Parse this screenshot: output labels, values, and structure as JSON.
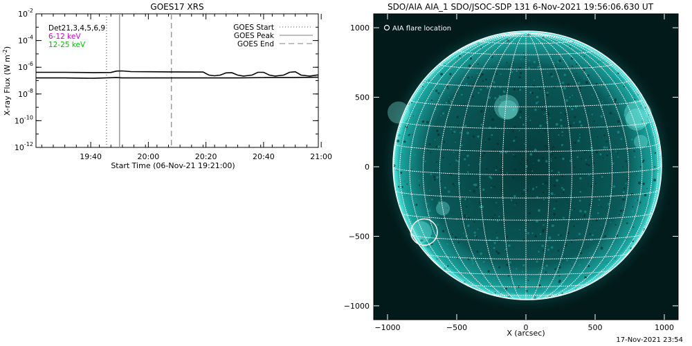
{
  "footer_timestamp": "17-Nov-2021 23:54",
  "chart_data": [
    {
      "type": "line",
      "title": "GOES17 XRS",
      "xlabel": "Start Time (06-Nov-21 19:21:00)",
      "ylabel": "X-ray Flux (W m^-2)",
      "y_scale": "log",
      "x_range_minutes_after_start": [
        0,
        98
      ],
      "ylim": [
        1e-12,
        0.01
      ],
      "x_ticks": [
        {
          "label": "19:40",
          "minute": 19
        },
        {
          "label": "20:00",
          "minute": 39
        },
        {
          "label": "20:20",
          "minute": 59
        },
        {
          "label": "20:40",
          "minute": 79
        },
        {
          "label": "21:00",
          "minute": 99
        }
      ],
      "y_ticks": [
        {
          "base": "10",
          "exp": "-2",
          "value": 0.01
        },
        {
          "base": "10",
          "exp": "-4",
          "value": 0.0001
        },
        {
          "base": "10",
          "exp": "-6",
          "value": 1e-06
        },
        {
          "base": "10",
          "exp": "-8",
          "value": 1e-08
        },
        {
          "base": "10",
          "exp": "-10",
          "value": 1e-10
        },
        {
          "base": "10",
          "exp": "-12",
          "value": 1e-12
        }
      ],
      "legend_left": [
        {
          "label": "Det21,3,4,5,6,9",
          "color": "#000000"
        },
        {
          "label": "6-12 keV",
          "color": "#d000d0"
        },
        {
          "label": "12-25 keV",
          "color": "#00c000"
        }
      ],
      "legend_right": [
        {
          "label": "GOES Start",
          "style": "dotted",
          "minute": 24.5
        },
        {
          "label": "GOES Peak",
          "style": "solid",
          "minute": 29
        },
        {
          "label": "GOES End",
          "style": "dashed",
          "minute": 47
        }
      ],
      "series": [
        {
          "color": "#000000",
          "points": [
            [
              0,
              4.2e-07
            ],
            [
              10,
              4.2e-07
            ],
            [
              20,
              4e-07
            ],
            [
              26,
              4.1e-07
            ],
            [
              28,
              5.2e-07
            ],
            [
              30,
              5.3e-07
            ],
            [
              33,
              4.7e-07
            ],
            [
              40,
              4.6e-07
            ],
            [
              47,
              4.5e-07
            ],
            [
              55,
              4.4e-07
            ],
            [
              58,
              4.4e-07
            ],
            [
              60,
              2.6e-07
            ],
            [
              62,
              2.3e-07
            ],
            [
              64,
              2.6e-07
            ],
            [
              66,
              3.8e-07
            ],
            [
              68,
              3.9e-07
            ],
            [
              70,
              2.6e-07
            ],
            [
              72,
              2.2e-07
            ],
            [
              75,
              2.6e-07
            ],
            [
              77,
              4.2e-07
            ],
            [
              79,
              4.2e-07
            ],
            [
              81,
              2.6e-07
            ],
            [
              83,
              2.2e-07
            ],
            [
              86,
              2.6e-07
            ],
            [
              88,
              4.2e-07
            ],
            [
              90,
              4.6e-07
            ],
            [
              92,
              2.6e-07
            ],
            [
              95,
              2.2e-07
            ],
            [
              98,
              2.7e-07
            ]
          ]
        },
        {
          "color": "#000000",
          "points": [
            [
              0,
              1.6e-07
            ],
            [
              10,
              1.6e-07
            ],
            [
              20,
              1.5e-07
            ],
            [
              28,
              1.7e-07
            ],
            [
              30,
              1.6e-07
            ],
            [
              40,
              1.6e-07
            ],
            [
              50,
              1.6e-07
            ],
            [
              60,
              1.6e-07
            ],
            [
              70,
              1.6e-07
            ],
            [
              80,
              1.7e-07
            ],
            [
              90,
              1.7e-07
            ],
            [
              98,
              1.8e-07
            ]
          ]
        }
      ]
    },
    {
      "type": "image",
      "title": "SDO/AIA AIA_1 SDO/JSOC-SDP 131  6-Nov-2021 19:56:06.630 UT",
      "xlabel": "X (arcsec)",
      "xlim": [
        -1100,
        1100
      ],
      "ylim": [
        -1100,
        1100
      ],
      "x_ticks": [
        -1000,
        -500,
        0,
        500,
        1000
      ],
      "y_ticks": [
        -1000,
        -500,
        0,
        500,
        1000
      ],
      "legend": "AIA flare location",
      "disk_radius_arcsec": 970,
      "flare_location": [
        -735,
        -470
      ],
      "flare_radius_arcsec": 95,
      "colors": {
        "background": "#021a1a",
        "disk": "#0a6e6e",
        "limb": "#3fd8d0",
        "grid": "#ffffff"
      }
    }
  ]
}
